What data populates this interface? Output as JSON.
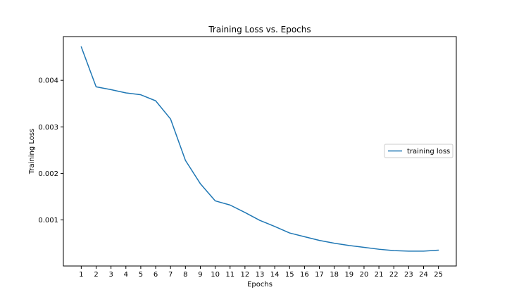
{
  "chart_data": {
    "type": "line",
    "title": "Training Loss vs. Epochs",
    "xlabel": "Epochs",
    "ylabel": "Training Loss",
    "x": [
      1,
      2,
      3,
      4,
      5,
      6,
      7,
      8,
      9,
      10,
      11,
      12,
      13,
      14,
      15,
      16,
      17,
      18,
      19,
      20,
      21,
      22,
      23,
      24,
      25
    ],
    "series": [
      {
        "name": "training loss",
        "color": "#1f77b4",
        "values": [
          0.00472,
          0.00386,
          0.0038,
          0.00373,
          0.00369,
          0.00356,
          0.00317,
          0.00228,
          0.00178,
          0.00141,
          0.00132,
          0.00116,
          0.00099,
          0.00086,
          0.00072,
          0.00064,
          0.00056,
          0.0005,
          0.00045,
          0.00041,
          0.00037,
          0.00034,
          0.00033,
          0.00033,
          0.00035
        ]
      }
    ],
    "xlim": [
      -0.2,
      26.2
    ],
    "ylim": [
      1e-05,
      0.00494
    ],
    "xticks": [
      1,
      2,
      3,
      4,
      5,
      6,
      7,
      8,
      9,
      10,
      11,
      12,
      13,
      14,
      15,
      16,
      17,
      18,
      19,
      20,
      21,
      22,
      23,
      24,
      25
    ],
    "yticks": [
      0.001,
      0.002,
      0.003,
      0.004
    ],
    "ytick_labels": [
      "0.001",
      "0.002",
      "0.003",
      "0.004"
    ],
    "grid": false,
    "legend_position": "center-right"
  }
}
